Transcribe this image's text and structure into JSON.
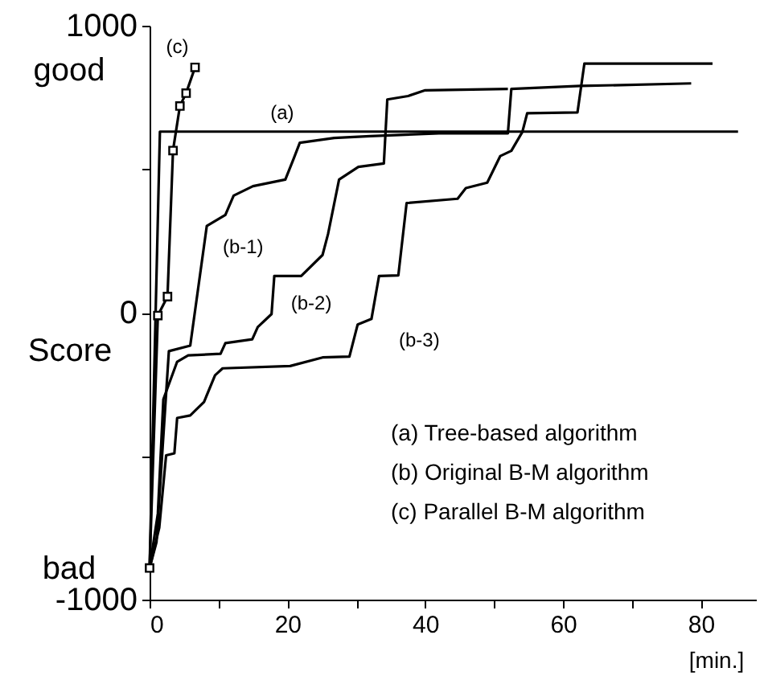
{
  "chart_data": {
    "type": "line",
    "xlabel": "[min.]",
    "ylabel": "Score",
    "xlim": [
      0,
      88
    ],
    "ylim": [
      -1000,
      1000
    ],
    "xticks": [
      0,
      {
        "value": 10,
        "label": null
      },
      20,
      {
        "value": 30,
        "label": null
      },
      40,
      {
        "value": 50,
        "label": null
      },
      60,
      {
        "value": 70,
        "label": null
      },
      80
    ],
    "yticks": [
      -1000,
      {
        "value": -500,
        "label": null
      },
      0,
      {
        "value": 500,
        "label": null
      },
      1000
    ],
    "grid": false,
    "line_style": "solid",
    "marker": "none",
    "series": [
      {
        "name": "(a)",
        "color": "#000000",
        "x": [
          0,
          1.5,
          85.4
        ],
        "values": [
          -890,
          631,
          631
        ]
      },
      {
        "name": "(b-1)",
        "color": "#000000",
        "x": [
          0,
          1.0,
          2.8,
          5.9,
          8.3,
          11.0,
          12.2,
          15.0,
          19.7,
          20.9,
          21.8,
          26.8,
          32.0,
          42.0,
          52.0,
          52.5,
          62.5,
          78.6
        ],
        "values": [
          -890,
          -800,
          -134,
          -115,
          302,
          341,
          408,
          441,
          464,
          536,
          592,
          609,
          615,
          625,
          625,
          780,
          790,
          799
        ]
      },
      {
        "name": "(b-2)",
        "color": "#000000",
        "x": [
          0,
          1.2,
          2.0,
          4.0,
          5.6,
          10.3,
          11.0,
          14.9,
          15.7,
          17.7,
          18.1,
          22.0,
          25.1,
          25.9,
          27.5,
          30.3,
          34.0,
          34.5,
          37.5,
          40.0,
          52.0
        ],
        "values": [
          -890,
          -700,
          -302,
          -171,
          -149,
          -143,
          -106,
          -93,
          -50,
          -5,
          128,
          128,
          201,
          274,
          464,
          508,
          520,
          743,
          755,
          775,
          780
        ]
      },
      {
        "name": "(b-3)",
        "color": "#000000",
        "x": [
          0,
          1.4,
          2.4,
          3.6,
          4.0,
          5.9,
          7.9,
          9.5,
          10.6,
          20.4,
          25.1,
          29.0,
          30.2,
          32.2,
          33.3,
          36.1,
          37.3,
          44.7,
          45.9,
          49.0,
          50.9,
          52.5,
          54.1,
          54.8,
          62.1,
          63.1,
          81.7
        ],
        "values": [
          -890,
          -750,
          -497,
          -490,
          -367,
          -358,
          -311,
          -218,
          -194,
          -186,
          -156,
          -153,
          -41,
          -22,
          128,
          130,
          382,
          397,
          434,
          453,
          546,
          564,
          630,
          695,
          698,
          868,
          868
        ]
      },
      {
        "name": "(c)",
        "color": "#000000",
        "marker": "square",
        "x": [
          0,
          1.2,
          2.6,
          3.4,
          4.4,
          5.3,
          6.6
        ],
        "values": [
          -890,
          -10,
          56,
          565,
          720,
          765,
          855
        ]
      }
    ],
    "annotations": [
      "good",
      "bad",
      "(a) Tree-based algorithm",
      "(b) Original B-M algorithm",
      "(c) Parallel B-M algorithm"
    ]
  }
}
